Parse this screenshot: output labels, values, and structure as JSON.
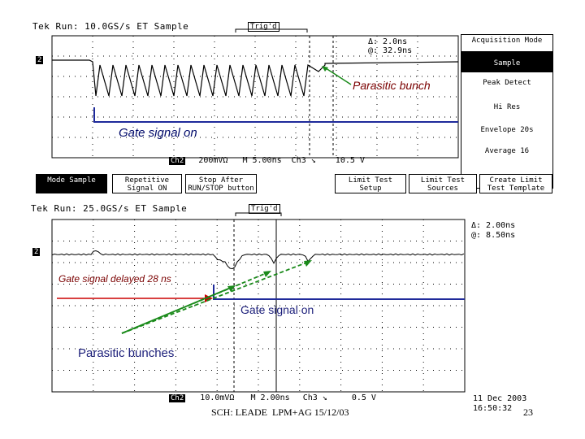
{
  "top_scope": {
    "title": "Tek Run: 10.0GS/s ET Sample",
    "trigger_mark": "Trig'd",
    "channel_marker": "2",
    "cursor_readout": [
      "Δ: 2.0ns",
      "@: 32.9ns"
    ],
    "status_bar": {
      "channel": "Ch2",
      "scale": "200mVΩ",
      "timebase": "M 5.00ns",
      "trigger": "Ch3 ↘",
      "level": "10.5 V"
    },
    "side_menu": [
      {
        "label": "Acquisition Mode",
        "selected": false
      },
      {
        "label": "Sample",
        "selected": true
      },
      {
        "label": "Peak Detect",
        "selected": false
      },
      {
        "label": "Hi Res",
        "selected": false
      },
      {
        "label": "Envelope 20s",
        "selected": false
      },
      {
        "label": "Average 16",
        "selected": false
      }
    ],
    "bottom_menu": [
      {
        "label": "Mode Sample",
        "selected": true
      },
      {
        "label": "Repetitive Signal ON",
        "selected": false
      },
      {
        "label": "Stop After RUN/STOP button",
        "selected": false
      },
      {
        "label": "Limit Test Setup",
        "selected": false
      },
      {
        "label": "Limit Test Sources",
        "selected": false
      },
      {
        "label": "Create Limit Test Template",
        "selected": false
      }
    ],
    "annotations": {
      "parasitic": "Parasitic bunch",
      "gate_on": "Gate signal on"
    }
  },
  "bottom_scope": {
    "title": "Tek Run: 25.0GS/s ET Sample",
    "trigger_mark": "Trig'd",
    "channel_marker": "2",
    "cursor_readout": [
      "Δ: 2.00ns",
      "@: 8.50ns"
    ],
    "status_bar": {
      "channel": "Ch2",
      "scale": "10.0mVΩ",
      "timebase": "M 2.00ns",
      "trigger": "Ch3 ↘",
      "level": "0.5 V"
    },
    "date": "11 Dec 2003",
    "time": "16:50:32",
    "annotations": {
      "delayed": "Gate signal delayed 28 ns",
      "gate_on": "Gate signal on",
      "parasitic": "Parasitic bunches"
    }
  },
  "footer": {
    "text": "SCH: LEADE  LPM+AG 15/12/03",
    "page": "23"
  },
  "colors": {
    "red_arrow": "#cc0000",
    "green_arrow": "#1a8a1a",
    "gate_line": "#1f2a9a",
    "annotation_text": "#7a0000"
  }
}
